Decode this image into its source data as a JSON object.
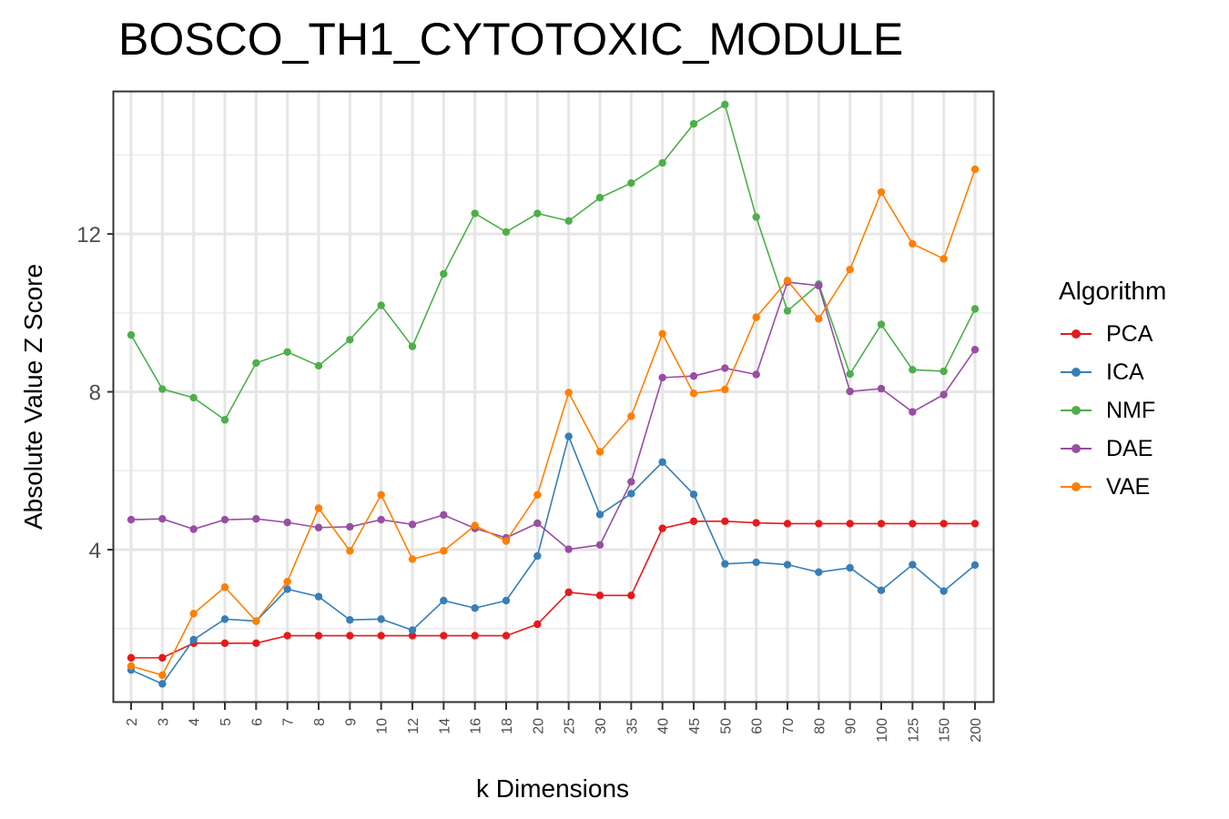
{
  "chart_data": {
    "type": "line",
    "title": "BOSCO_TH1_CYTOTOXIC_MODULE",
    "xlabel": "k Dimensions",
    "ylabel": "Absolute Value Z Score",
    "categories": [
      "2",
      "3",
      "4",
      "5",
      "6",
      "7",
      "8",
      "9",
      "10",
      "12",
      "14",
      "16",
      "18",
      "20",
      "25",
      "30",
      "35",
      "40",
      "45",
      "50",
      "60",
      "70",
      "80",
      "90",
      "100",
      "125",
      "150",
      "200"
    ],
    "ylim": [
      0.15,
      15.6
    ],
    "yticks": [
      4,
      8,
      12
    ],
    "grid": true,
    "legend_title": "Algorithm",
    "legend_position": "right",
    "series": [
      {
        "name": "PCA",
        "color": "#E41A1C",
        "values": [
          1.26,
          1.26,
          1.63,
          1.63,
          1.63,
          1.82,
          1.82,
          1.82,
          1.82,
          1.82,
          1.82,
          1.82,
          1.82,
          2.11,
          2.92,
          2.84,
          2.84,
          4.54,
          4.72,
          4.72,
          4.68,
          4.66,
          4.66,
          4.66,
          4.66,
          4.66,
          4.66,
          4.66
        ]
      },
      {
        "name": "ICA",
        "color": "#377EB8",
        "values": [
          0.95,
          0.6,
          1.72,
          2.24,
          2.19,
          3.0,
          2.81,
          2.22,
          2.24,
          1.96,
          2.71,
          2.52,
          2.71,
          3.84,
          6.87,
          4.89,
          5.42,
          6.22,
          5.4,
          3.64,
          3.68,
          3.62,
          3.43,
          3.54,
          2.97,
          3.62,
          2.95,
          3.61
        ]
      },
      {
        "name": "NMF",
        "color": "#4DAF4A",
        "values": [
          9.44,
          8.07,
          7.85,
          7.29,
          8.73,
          9.01,
          8.66,
          9.32,
          10.19,
          9.15,
          10.99,
          12.52,
          12.05,
          12.52,
          12.33,
          12.92,
          13.29,
          13.8,
          14.79,
          15.28,
          12.43,
          10.05,
          10.73,
          8.45,
          9.71,
          8.56,
          8.52,
          10.1
        ]
      },
      {
        "name": "DAE",
        "color": "#984EA3",
        "values": [
          4.76,
          4.78,
          4.52,
          4.76,
          4.78,
          4.69,
          4.56,
          4.58,
          4.76,
          4.64,
          4.88,
          4.54,
          4.3,
          4.67,
          4.01,
          4.12,
          5.72,
          8.36,
          8.4,
          8.6,
          8.44,
          10.78,
          10.69,
          8.01,
          8.08,
          7.49,
          7.93,
          9.07
        ]
      },
      {
        "name": "VAE",
        "color": "#FF7F00",
        "values": [
          1.05,
          0.82,
          2.38,
          3.05,
          2.19,
          3.19,
          5.05,
          3.97,
          5.39,
          3.76,
          3.97,
          4.61,
          4.22,
          5.39,
          7.98,
          6.48,
          7.38,
          9.47,
          7.96,
          8.06,
          9.89,
          10.82,
          9.85,
          11.1,
          13.06,
          11.75,
          11.37,
          13.64
        ]
      }
    ]
  }
}
